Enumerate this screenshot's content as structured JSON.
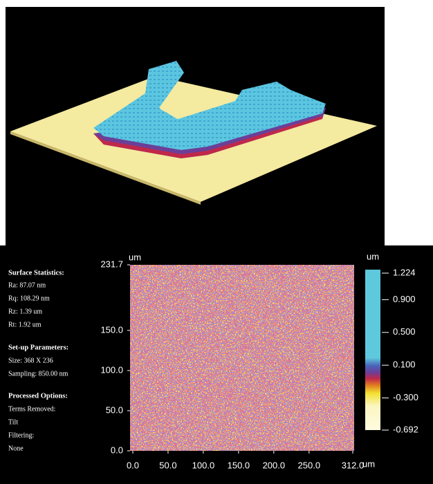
{
  "stats": {
    "title": "Surface Statistics:",
    "items": [
      "Ra:  87.07 nm",
      "Rq:  108.29 nm",
      "Rz:  1.39 um",
      "Rt:  1.92 um"
    ],
    "setup_title": "Set-up Parameters:",
    "setup_items": [
      "Size: 368 X 236",
      "Sampling:  850.00 nm"
    ],
    "options_title": "Processed Options:",
    "options_items": [
      "Terms Removed:",
      "Tilt",
      "Filtering:",
      "None"
    ]
  },
  "map": {
    "x_unit": "um",
    "y_unit": "um",
    "xlim": [
      0,
      312
    ],
    "ylim": [
      0,
      231.7
    ],
    "xticks": [
      {
        "value": 0,
        "label": "0.0"
      },
      {
        "value": 50,
        "label": "50.0"
      },
      {
        "value": 100,
        "label": "100.0"
      },
      {
        "value": 150,
        "label": "150.0"
      },
      {
        "value": 200,
        "label": "200.0"
      },
      {
        "value": 250,
        "label": "250.0"
      },
      {
        "value": 312,
        "label": "312.0"
      }
    ],
    "yticks": [
      {
        "value": 0,
        "label": "0.0"
      },
      {
        "value": 50,
        "label": "50.0"
      },
      {
        "value": 100,
        "label": "100.0"
      },
      {
        "value": 150,
        "label": "150.0"
      },
      231.7
    ],
    "colorbar": {
      "unit_top": "um",
      "unit_bottom": "um",
      "lim": [
        -0.692,
        1.224
      ],
      "ticks": [
        1.224,
        {
          "value": 0.9,
          "label": "0.900"
        },
        {
          "value": 0.5,
          "label": "0.500"
        },
        {
          "value": 0.1,
          "label": "0.100"
        },
        {
          "value": -0.3,
          "label": "-0.300"
        },
        -0.692
      ]
    }
  }
}
